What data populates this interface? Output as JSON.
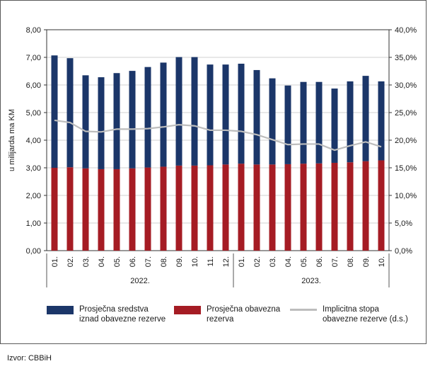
{
  "chart_data": {
    "type": "bar",
    "stacked": true,
    "categories": [
      "01.",
      "02.",
      "03.",
      "04.",
      "05.",
      "06.",
      "07.",
      "08.",
      "09.",
      "10.",
      "11.",
      "12.",
      "01.",
      "02.",
      "03.",
      "04.",
      "05.",
      "06.",
      "07.",
      "08.",
      "09.",
      "10."
    ],
    "groups": [
      {
        "label": "2022.",
        "count": 12
      },
      {
        "label": "2023.",
        "count": 10
      }
    ],
    "series": [
      {
        "name": "Prosječna obavezna rezerva",
        "color": "#a51c24",
        "values": [
          3.0,
          3.02,
          2.98,
          2.95,
          2.95,
          2.98,
          3.01,
          3.04,
          3.08,
          3.08,
          3.09,
          3.12,
          3.15,
          3.12,
          3.12,
          3.13,
          3.15,
          3.16,
          3.18,
          3.2,
          3.24,
          3.27
        ]
      },
      {
        "name": "Prosječna sredstva iznad obavezne rezerve",
        "color": "#1b3669",
        "values": [
          4.07,
          3.95,
          3.37,
          3.33,
          3.48,
          3.53,
          3.64,
          3.77,
          3.93,
          3.93,
          3.65,
          3.62,
          3.62,
          3.42,
          3.12,
          2.85,
          2.96,
          2.95,
          2.69,
          2.93,
          3.09,
          2.86
        ]
      },
      {
        "name": "Implicitna stopa obavezne rezerve (d.s.)",
        "color": "#bdbdbd",
        "axis": "right",
        "values": [
          23.6,
          23.2,
          21.6,
          21.5,
          22.0,
          22.0,
          22.1,
          22.4,
          22.8,
          22.6,
          21.8,
          21.8,
          21.6,
          21.0,
          20.1,
          19.2,
          19.3,
          19.3,
          18.2,
          19.0,
          19.7,
          18.8
        ]
      }
    ],
    "ylabel": "u milijarda ma KM",
    "ylim": [
      0,
      8
    ],
    "y_ticks": [
      "0,00",
      "1,00",
      "2,00",
      "3,00",
      "4,00",
      "5,00",
      "6,00",
      "7,00",
      "8,00"
    ],
    "y2lim": [
      0,
      40
    ],
    "y2_ticks": [
      "0,0%",
      "5,0%",
      "10,0%",
      "15,0%",
      "20,0%",
      "25,0%",
      "30,0%",
      "35,0%",
      "40,0%"
    ],
    "grid": true,
    "legend_position": "bottom"
  },
  "legend": {
    "items": [
      {
        "label_line1": "Prosječna sredstva",
        "label_line2": "iznad obavezne rezerve",
        "color": "#1b3669"
      },
      {
        "label_line1": "Prosječna obavezna",
        "label_line2": "rezerva",
        "color": "#a51c24"
      },
      {
        "label_line1": "Implicitna stopa",
        "label_line2": "obavezne rezerve (d.s.)",
        "color": "#bdbdbd"
      }
    ]
  },
  "source_note": "Izvor: CBBiH"
}
